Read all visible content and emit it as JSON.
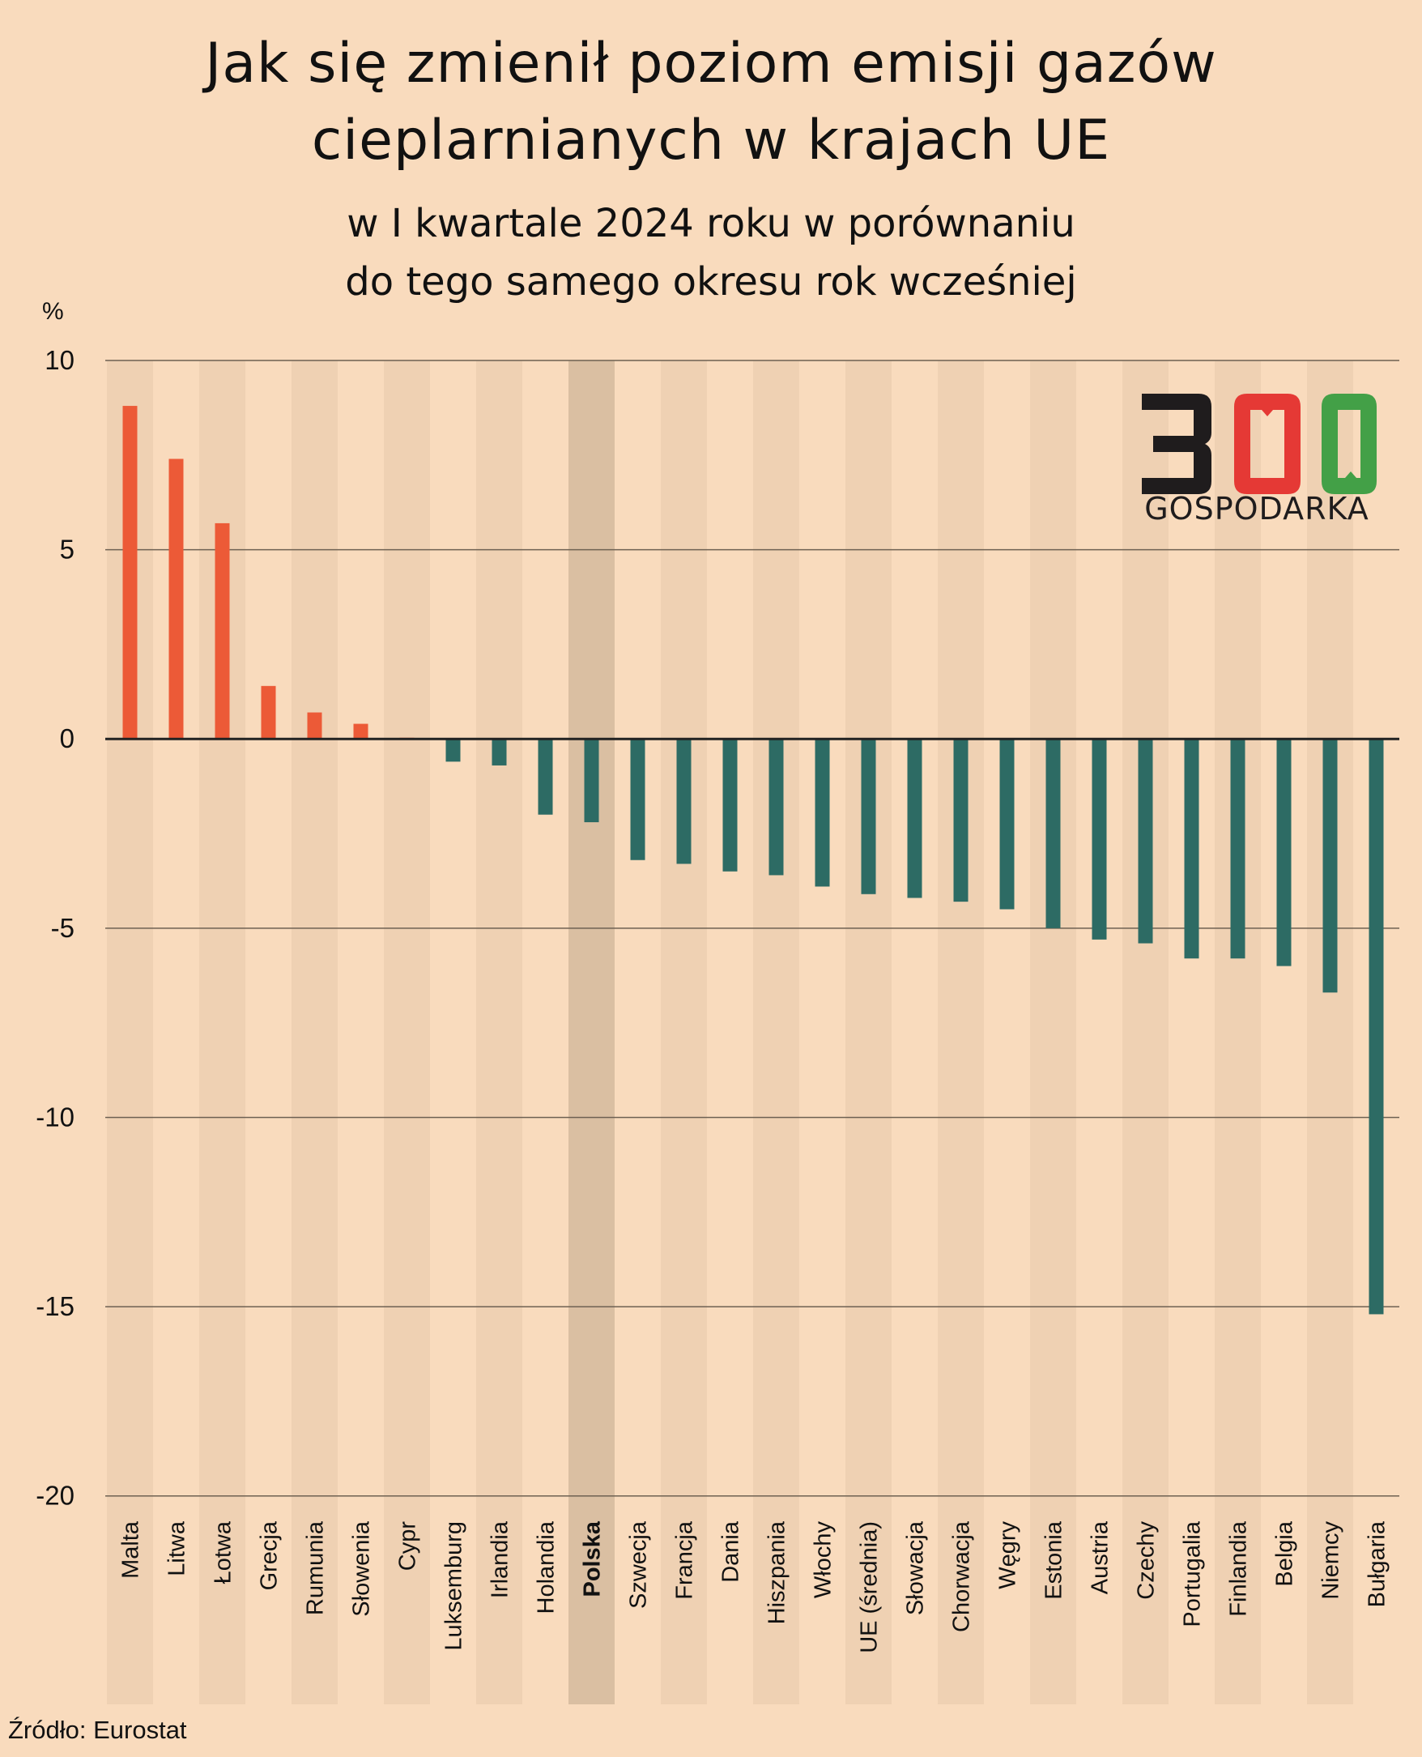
{
  "header": {
    "title_line1": "Jak się zmienił poziom emisji gazów",
    "title_line2": "cieplarnianych w krajach UE",
    "subtitle_line1": "w I kwartale 2024 roku w porównaniu",
    "subtitle_line2": "do tego samego okresu rok wcześniej"
  },
  "logo": {
    "number": "300",
    "text": "GOSPODARKA",
    "colors": {
      "three": "#1f1c1d",
      "zero1": "#e53935",
      "zero2": "#43a047"
    }
  },
  "footer": {
    "source": "Źródło: Eurostat"
  },
  "colors": {
    "background": "#f9dbbd",
    "band": "#efd1b3",
    "band_highlight": "#dabfa2",
    "positive": "#ec5a37",
    "negative": "#2d6b64",
    "gridline": "#6e6152",
    "zero_line": "#222222"
  },
  "chart_data": {
    "type": "bar",
    "title": "Jak się zmienił poziom emisji gazów cieplarnianych w krajach UE",
    "subtitle": "w I kwartale 2024 roku w porównaniu do tego samego okresu rok wcześniej",
    "xlabel": "",
    "ylabel": "%",
    "ylim": [
      -20,
      10
    ],
    "yticks": [
      10,
      5,
      0,
      -5,
      -10,
      -15,
      -20
    ],
    "ytick_labels": [
      "10",
      "5",
      "0",
      "-5",
      "-10",
      "-15",
      "-20"
    ],
    "grid": true,
    "highlight": "Polska",
    "categories": [
      "Malta",
      "Litwa",
      "Łotwa",
      "Grecja",
      "Rumunia",
      "Słowenia",
      "Cypr",
      "Luksemburg",
      "Irlandia",
      "Holandia",
      "Polska",
      "Szwecja",
      "Francja",
      "Dania",
      "Hiszpania",
      "Włochy",
      "UE (średnia)",
      "Słowacja",
      "Chorwacja",
      "Węgry",
      "Estonia",
      "Austria",
      "Czechy",
      "Portugalia",
      "Finlandia",
      "Belgia",
      "Niemcy",
      "Bułgaria"
    ],
    "values": [
      8.8,
      7.4,
      5.7,
      1.4,
      0.7,
      0.4,
      0.0,
      -0.6,
      -0.7,
      -2.0,
      -2.2,
      -3.2,
      -3.3,
      -3.5,
      -3.6,
      -3.9,
      -4.1,
      -4.2,
      -4.3,
      -4.5,
      -5.0,
      -5.3,
      -5.4,
      -5.8,
      -5.8,
      -6.0,
      -6.7,
      -15.2
    ],
    "source": "Eurostat"
  }
}
